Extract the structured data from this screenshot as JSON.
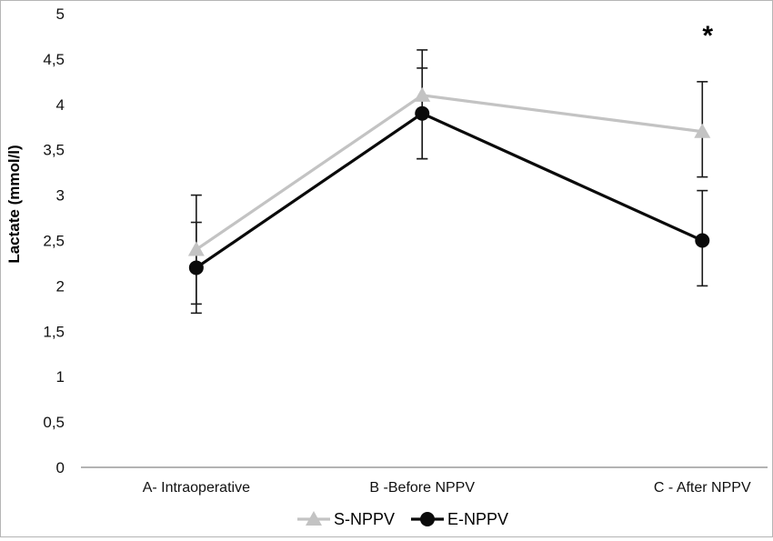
{
  "chart_data": {
    "type": "line",
    "title": "",
    "ylabel": "Lactate (mmol/l)",
    "xlabel": "",
    "ylim": [
      0,
      5
    ],
    "ytick_values": [
      0,
      0.5,
      1,
      1.5,
      2,
      2.5,
      3,
      3.5,
      4,
      4.5,
      5
    ],
    "ytick_labels": [
      "0",
      "0,5",
      "1",
      "1,5",
      "2",
      "2,5",
      "3",
      "3,5",
      "4",
      "4,5",
      "5"
    ],
    "categories": [
      "A- Intraoperative",
      "B -Before NPPV",
      "C - After NPPV"
    ],
    "grid": false,
    "legend_position": "bottom-center",
    "axis_line_color": "#b3b3b3",
    "error_bar_color": "#1a1a1a",
    "series": [
      {
        "name": "S-NPPV",
        "marker": "triangle",
        "color": "#c3c3c3",
        "values": [
          2.4,
          4.1,
          3.7
        ],
        "err_minus": [
          0.6,
          0.7,
          0.5
        ],
        "err_plus": [
          0.6,
          0.5,
          0.55
        ]
      },
      {
        "name": "E-NPPV",
        "marker": "circle",
        "color": "#0a0a0a",
        "values": [
          2.2,
          3.9,
          2.5
        ],
        "err_minus": [
          0.5,
          0.5,
          0.5
        ],
        "err_plus": [
          0.5,
          0.5,
          0.55
        ]
      }
    ],
    "annotations": [
      {
        "text": "*",
        "category_index": 2,
        "y": 4.75,
        "meaning": "significance marker above C - After NPPV point"
      }
    ]
  }
}
